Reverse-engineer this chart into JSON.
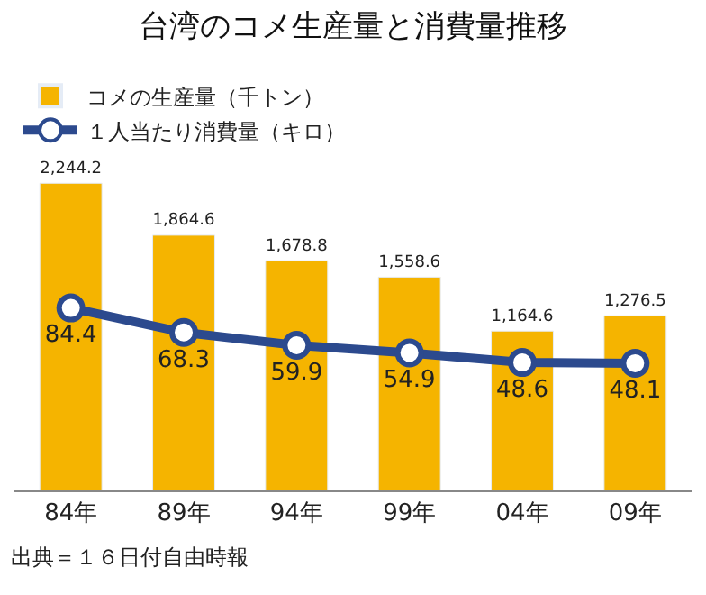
{
  "chart_data": {
    "type": "bar",
    "title": "台湾のコメ生産量と消費量推移",
    "categories": [
      "84年",
      "89年",
      "94年",
      "99年",
      "04年",
      "09年"
    ],
    "series": [
      {
        "name": "コメの生産量（千トン）",
        "color": "#f5b400",
        "values": [
          2244.2,
          1864.6,
          1678.8,
          1558.6,
          1164.6,
          1276.5
        ],
        "value_labels": [
          "2,244.2",
          "1,864.6",
          "1,678.8",
          "1,558.6",
          "1,164.6",
          "1,276.5"
        ]
      },
      {
        "name": "１人当たり消費量（キロ）",
        "type": "line",
        "axis": "y2",
        "color": "#2c4a8e",
        "values": [
          84.4,
          68.3,
          59.9,
          54.9,
          48.6,
          48.1
        ],
        "value_labels": [
          "84.4",
          "68.3",
          "59.9",
          "54.9",
          "48.6",
          "48.1"
        ]
      }
    ],
    "marker": "circle",
    "legend": "top left",
    "annotations": [
      "出典＝１６日付自由時報"
    ]
  }
}
